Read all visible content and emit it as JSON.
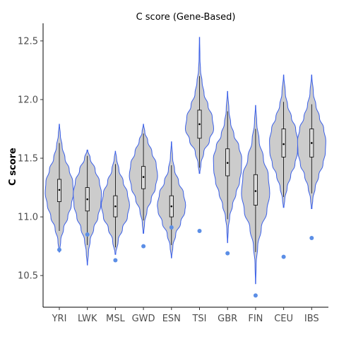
{
  "chart_data": {
    "type": "violin",
    "title": "C score (Gene-Based)",
    "xlabel": "",
    "ylabel": "C score",
    "ylim": [
      10.23,
      12.65
    ],
    "yticks": [
      10.5,
      11.0,
      11.5,
      12.0,
      12.5
    ],
    "ytick_labels": [
      "10.5",
      "11.0",
      "11.5",
      "12.0",
      "12.5"
    ],
    "grid": false,
    "violin_color": "#cccccc",
    "outline_color": "#3a5fe8",
    "outlier_color": "#5b8ee6",
    "categories": [
      "YRI",
      "LWK",
      "MSL",
      "GWD",
      "ESN",
      "TSI",
      "GBR",
      "FIN",
      "CEU",
      "IBS"
    ],
    "groups": [
      {
        "label": "YRI",
        "min": 10.7,
        "max": 11.79,
        "q1": 11.13,
        "median": 11.23,
        "q3": 11.32,
        "whisker_low": 10.88,
        "whisker_high": 11.63,
        "outliers": [
          10.72
        ],
        "density": [
          [
            10.7,
            0.02
          ],
          [
            10.8,
            0.1
          ],
          [
            10.9,
            0.3
          ],
          [
            11.0,
            0.6
          ],
          [
            11.1,
            0.85
          ],
          [
            11.2,
            1.0
          ],
          [
            11.3,
            0.95
          ],
          [
            11.4,
            0.7
          ],
          [
            11.5,
            0.4
          ],
          [
            11.6,
            0.2
          ],
          [
            11.7,
            0.07
          ],
          [
            11.79,
            0.01
          ]
        ]
      },
      {
        "label": "LWK",
        "min": 10.59,
        "max": 11.57,
        "q1": 11.05,
        "median": 11.15,
        "q3": 11.25,
        "whisker_low": 10.76,
        "whisker_high": 11.52,
        "outliers": [
          10.85
        ],
        "density": [
          [
            10.59,
            0.01
          ],
          [
            10.7,
            0.08
          ],
          [
            10.8,
            0.2
          ],
          [
            10.9,
            0.45
          ],
          [
            11.0,
            0.75
          ],
          [
            11.1,
            0.95
          ],
          [
            11.2,
            1.0
          ],
          [
            11.3,
            0.85
          ],
          [
            11.4,
            0.55
          ],
          [
            11.5,
            0.2
          ],
          [
            11.57,
            0.02
          ]
        ]
      },
      {
        "label": "MSL",
        "min": 10.68,
        "max": 11.56,
        "q1": 11.0,
        "median": 11.09,
        "q3": 11.18,
        "whisker_low": 10.74,
        "whisker_high": 11.45,
        "outliers": [
          10.63
        ],
        "density": [
          [
            10.68,
            0.02
          ],
          [
            10.8,
            0.2
          ],
          [
            10.9,
            0.5
          ],
          [
            11.0,
            0.85
          ],
          [
            11.1,
            1.0
          ],
          [
            11.2,
            0.85
          ],
          [
            11.3,
            0.55
          ],
          [
            11.4,
            0.25
          ],
          [
            11.5,
            0.08
          ],
          [
            11.56,
            0.01
          ]
        ]
      },
      {
        "label": "GWD",
        "min": 10.86,
        "max": 11.79,
        "q1": 11.24,
        "median": 11.34,
        "q3": 11.43,
        "whisker_low": 10.97,
        "whisker_high": 11.71,
        "outliers": [
          10.75
        ],
        "density": [
          [
            10.86,
            0.02
          ],
          [
            10.95,
            0.08
          ],
          [
            11.05,
            0.25
          ],
          [
            11.15,
            0.55
          ],
          [
            11.25,
            0.85
          ],
          [
            11.35,
            1.0
          ],
          [
            11.45,
            0.9
          ],
          [
            11.55,
            0.6
          ],
          [
            11.65,
            0.3
          ],
          [
            11.72,
            0.1
          ],
          [
            11.79,
            0.01
          ]
        ]
      },
      {
        "label": "ESN",
        "min": 10.65,
        "max": 11.64,
        "q1": 11.0,
        "median": 11.09,
        "q3": 11.18,
        "whisker_low": 10.76,
        "whisker_high": 11.44,
        "outliers": [
          10.91
        ],
        "density": [
          [
            10.65,
            0.01
          ],
          [
            10.75,
            0.1
          ],
          [
            10.85,
            0.3
          ],
          [
            10.95,
            0.65
          ],
          [
            11.05,
            0.95
          ],
          [
            11.1,
            1.0
          ],
          [
            11.2,
            0.85
          ],
          [
            11.3,
            0.5
          ],
          [
            11.4,
            0.22
          ],
          [
            11.5,
            0.08
          ],
          [
            11.64,
            0.01
          ]
        ]
      },
      {
        "label": "TSI",
        "min": 11.37,
        "max": 12.53,
        "q1": 11.67,
        "median": 11.79,
        "q3": 11.91,
        "whisker_low": 11.42,
        "whisker_high": 12.2,
        "outliers": [
          10.88
        ],
        "density": [
          [
            11.37,
            0.02
          ],
          [
            11.45,
            0.1
          ],
          [
            11.55,
            0.3
          ],
          [
            11.65,
            0.7
          ],
          [
            11.75,
            1.0
          ],
          [
            11.85,
            0.9
          ],
          [
            11.95,
            0.6
          ],
          [
            12.05,
            0.32
          ],
          [
            12.15,
            0.18
          ],
          [
            12.25,
            0.07
          ],
          [
            12.35,
            0.03
          ],
          [
            12.53,
            0.01
          ]
        ]
      },
      {
        "label": "GBR",
        "min": 10.78,
        "max": 12.07,
        "q1": 11.35,
        "median": 11.46,
        "q3": 11.58,
        "whisker_low": 10.98,
        "whisker_high": 11.9,
        "outliers": [
          10.69
        ],
        "density": [
          [
            10.78,
            0.01
          ],
          [
            10.9,
            0.05
          ],
          [
            11.0,
            0.15
          ],
          [
            11.1,
            0.35
          ],
          [
            11.2,
            0.6
          ],
          [
            11.3,
            0.85
          ],
          [
            11.4,
            0.98
          ],
          [
            11.5,
            1.0
          ],
          [
            11.6,
            0.8
          ],
          [
            11.7,
            0.45
          ],
          [
            11.8,
            0.22
          ],
          [
            11.9,
            0.1
          ],
          [
            12.07,
            0.01
          ]
        ]
      },
      {
        "label": "FIN",
        "min": 10.43,
        "max": 11.95,
        "q1": 11.1,
        "median": 11.22,
        "q3": 11.36,
        "whisker_low": 10.7,
        "whisker_high": 11.75,
        "outliers": [
          10.33
        ],
        "density": [
          [
            10.43,
            0.01
          ],
          [
            10.6,
            0.04
          ],
          [
            10.75,
            0.15
          ],
          [
            10.9,
            0.4
          ],
          [
            11.05,
            0.8
          ],
          [
            11.2,
            1.0
          ],
          [
            11.35,
            0.9
          ],
          [
            11.5,
            0.55
          ],
          [
            11.65,
            0.25
          ],
          [
            11.8,
            0.08
          ],
          [
            11.95,
            0.01
          ]
        ]
      },
      {
        "label": "CEU",
        "min": 11.08,
        "max": 12.21,
        "q1": 11.51,
        "median": 11.62,
        "q3": 11.75,
        "whisker_low": 11.17,
        "whisker_high": 11.98,
        "outliers": [
          10.66
        ],
        "density": [
          [
            11.08,
            0.02
          ],
          [
            11.15,
            0.08
          ],
          [
            11.25,
            0.25
          ],
          [
            11.35,
            0.5
          ],
          [
            11.45,
            0.8
          ],
          [
            11.55,
            0.98
          ],
          [
            11.65,
            1.0
          ],
          [
            11.75,
            0.85
          ],
          [
            11.85,
            0.55
          ],
          [
            11.95,
            0.28
          ],
          [
            12.05,
            0.12
          ],
          [
            12.21,
            0.01
          ]
        ]
      },
      {
        "label": "IBS",
        "min": 11.07,
        "max": 12.21,
        "q1": 11.51,
        "median": 11.63,
        "q3": 11.75,
        "whisker_low": 11.2,
        "whisker_high": 11.96,
        "outliers": [
          10.82
        ],
        "density": [
          [
            11.07,
            0.02
          ],
          [
            11.15,
            0.08
          ],
          [
            11.25,
            0.25
          ],
          [
            11.35,
            0.5
          ],
          [
            11.45,
            0.8
          ],
          [
            11.55,
            0.97
          ],
          [
            11.65,
            1.0
          ],
          [
            11.75,
            0.85
          ],
          [
            11.85,
            0.55
          ],
          [
            11.95,
            0.3
          ],
          [
            12.05,
            0.12
          ],
          [
            12.21,
            0.01
          ]
        ]
      }
    ]
  }
}
